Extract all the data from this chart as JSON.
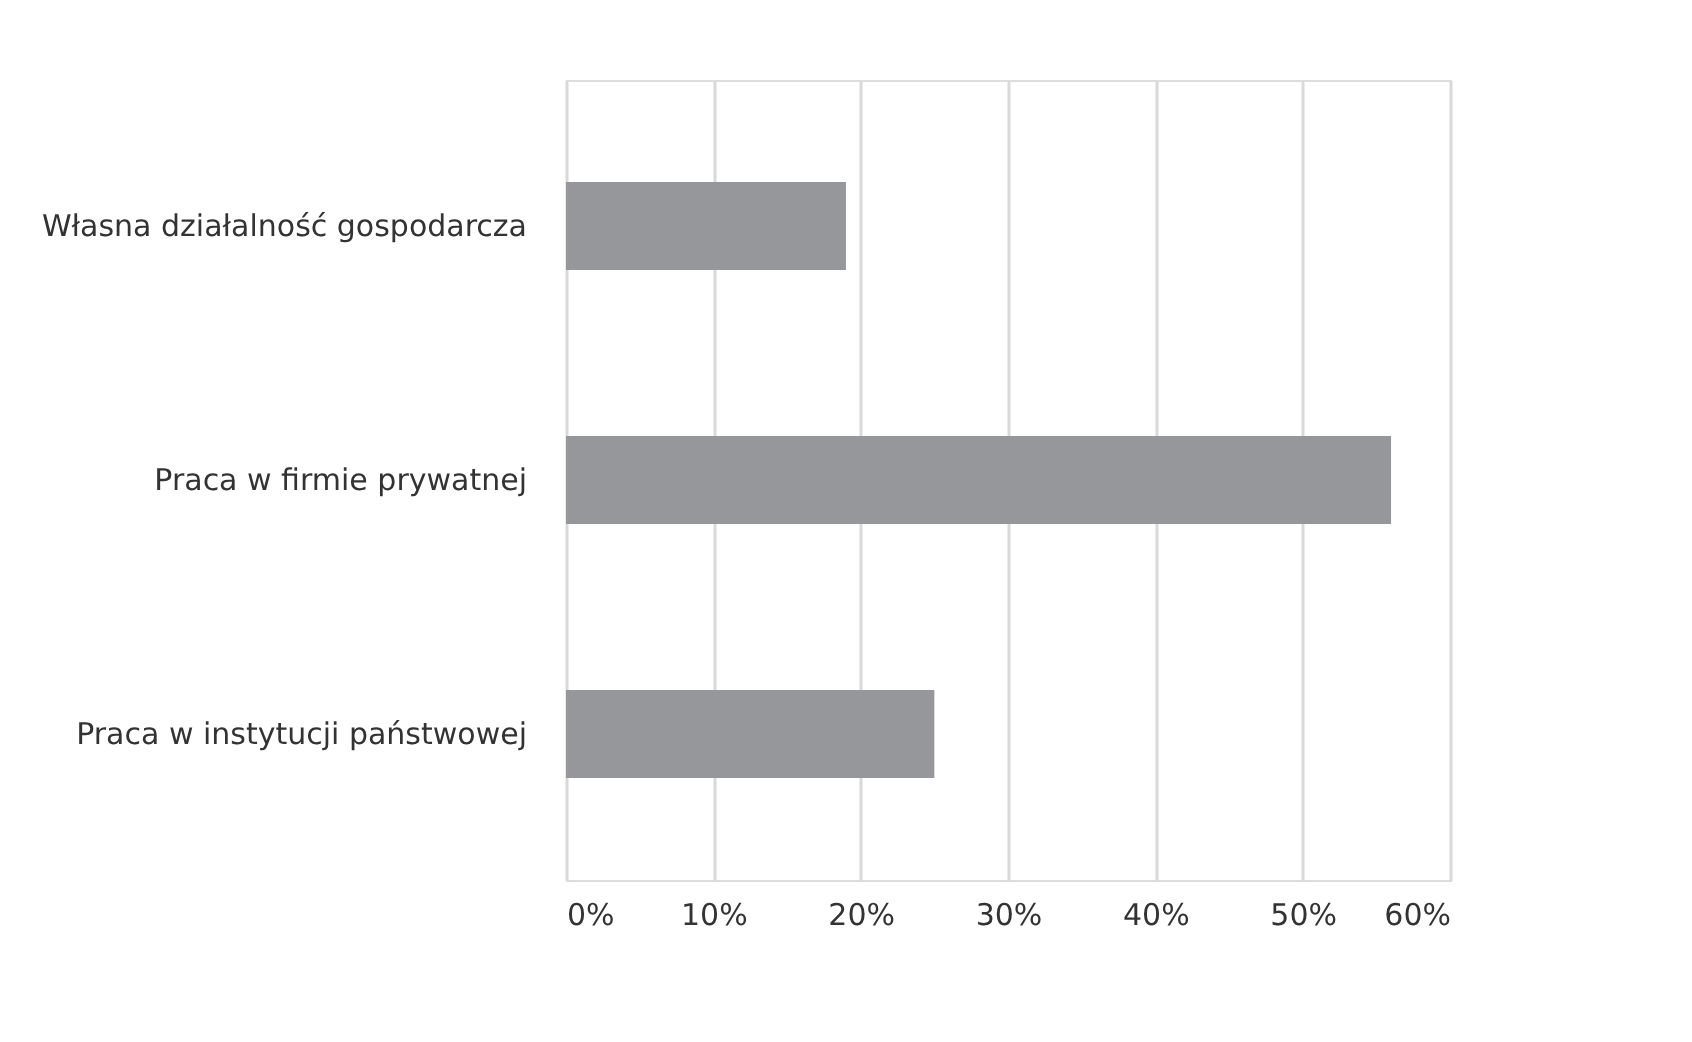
{
  "chart_data": {
    "type": "bar",
    "orientation": "horizontal",
    "categories": [
      "Własna działalność gospodarcza",
      "Praca w firmie prywatnej",
      "Praca w instytucji państwowej"
    ],
    "values": [
      19,
      56,
      25
    ],
    "color": "#96979b",
    "xlim": [
      0,
      60
    ],
    "xticks": [
      {
        "value": 0,
        "label": "0%"
      },
      {
        "value": 10,
        "label": "10%"
      },
      {
        "value": 20,
        "label": "20%"
      },
      {
        "value": 30,
        "label": "30%"
      },
      {
        "value": 40,
        "label": "40%"
      },
      {
        "value": 50,
        "label": "50%"
      },
      {
        "value": 60,
        "label": "60%"
      }
    ],
    "grid": "x"
  }
}
